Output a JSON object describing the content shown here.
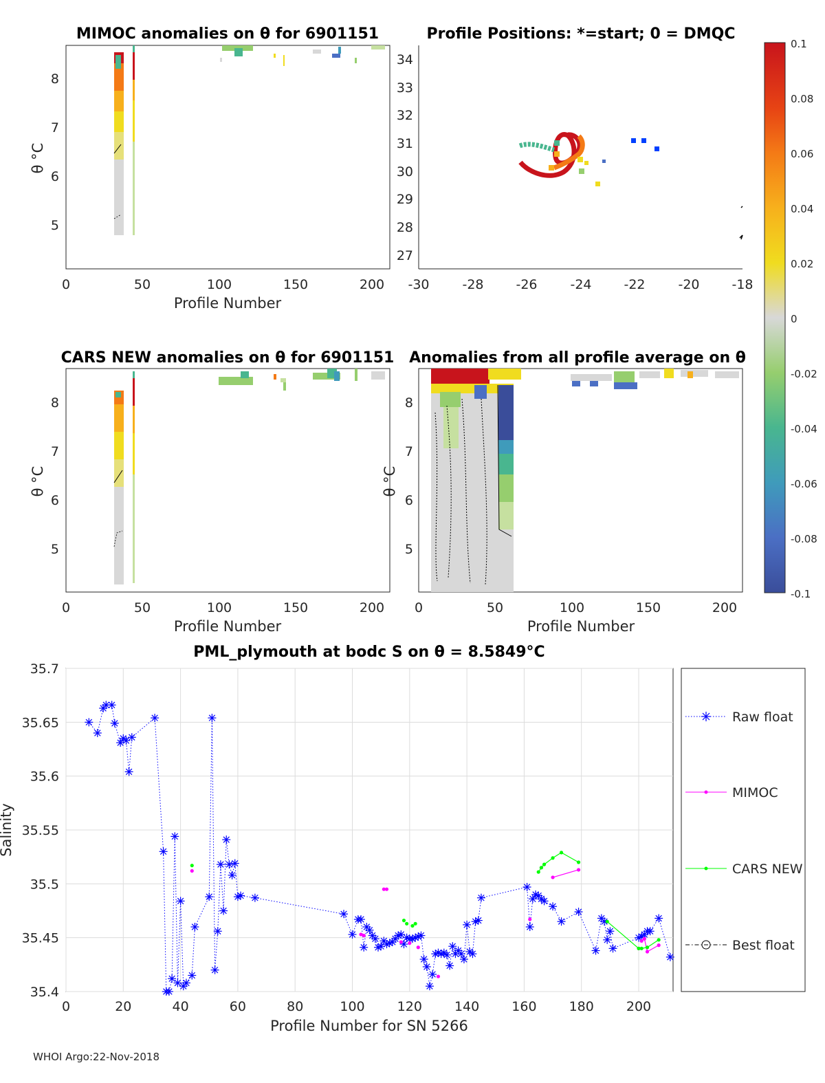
{
  "panels": {
    "mimoc": {
      "title": "MIMOC anomalies on θ  for 6901151",
      "xlabel": "Profile Number",
      "ylabel": "θ °C",
      "xticks": [
        "0",
        "50",
        "100",
        "150",
        "200"
      ],
      "yticks": [
        "5",
        "6",
        "7",
        "8"
      ]
    },
    "positions": {
      "title": "Profile Positions: *=start; 0 = DMQC",
      "xticks": [
        "-30",
        "-28",
        "-26",
        "-24",
        "-22",
        "-20",
        "-18"
      ],
      "yticks": [
        "27",
        "28",
        "29",
        "30",
        "31",
        "32",
        "33",
        "34"
      ]
    },
    "cars": {
      "title": "CARS NEW anomalies on θ for 6901151",
      "xlabel": "Profile Number",
      "ylabel": "θ °C",
      "xticks": [
        "0",
        "50",
        "100",
        "150",
        "200"
      ],
      "yticks": [
        "5",
        "6",
        "7",
        "8"
      ]
    },
    "anom": {
      "title": "Anomalies from all profile average on θ",
      "xlabel": "Profile Number",
      "ylabel": "θ °C",
      "xticks": [
        "0",
        "50",
        "100",
        "150",
        "200"
      ],
      "yticks": [
        "5",
        "6",
        "7",
        "8"
      ]
    }
  },
  "colorbar": {
    "ticks": [
      "0.1",
      "0.08",
      "0.06",
      "0.04",
      "0.02",
      "0",
      "-0.02",
      "-0.04",
      "-0.06",
      "-0.08",
      "-0.1"
    ],
    "range": [
      -0.1,
      0.1
    ],
    "colors": [
      "#3a4d9a",
      "#4b6fc4",
      "#3f9bbb",
      "#49b68f",
      "#96ce6e",
      "#d8d8d8",
      "#f0dc1f",
      "#f7b01c",
      "#f47a16",
      "#e74414",
      "#c8141c"
    ]
  },
  "chart_data": [
    {
      "type": "scatter",
      "title": "PML_plymouth at bodc S on θ = 8.5849°C",
      "xlabel": "Profile Number for SN 5266",
      "ylabel": "Salinity",
      "xlim": [
        0,
        212
      ],
      "ylim": [
        35.4,
        35.7
      ],
      "xticks": [
        "0",
        "20",
        "40",
        "60",
        "80",
        "100",
        "120",
        "140",
        "160",
        "180",
        "200"
      ],
      "yticks": [
        "35.4",
        "35.45",
        "35.5",
        "35.55",
        "35.6",
        "35.65",
        "35.7"
      ],
      "grid": true,
      "legend_position": "right",
      "series": [
        {
          "name": "Raw float",
          "color": "#0000ff",
          "marker": "asterisk",
          "line": "dotted",
          "x": [
            8,
            11,
            13,
            14,
            16,
            17,
            19,
            20,
            21,
            22,
            23,
            31,
            34,
            35,
            36,
            37,
            38,
            39,
            40,
            41,
            42,
            44,
            45,
            50,
            51,
            52,
            53,
            54,
            55,
            56,
            57,
            58,
            59,
            60,
            61,
            66,
            97,
            100,
            102,
            103,
            104,
            105,
            106,
            107,
            108,
            109,
            110,
            111,
            112,
            113,
            114,
            115,
            116,
            117,
            118,
            119,
            120,
            121,
            122,
            123,
            124,
            125,
            126,
            127,
            128,
            129,
            130,
            131,
            132,
            133,
            134,
            135,
            136,
            137,
            138,
            139,
            140,
            141,
            142,
            143,
            144,
            145,
            161,
            162,
            163,
            164,
            165,
            166,
            167,
            170,
            173,
            179,
            185,
            187,
            188,
            189,
            190,
            191,
            200,
            201,
            202,
            203,
            204,
            207,
            211
          ],
          "y": [
            35.65,
            35.64,
            35.663,
            35.666,
            35.666,
            35.649,
            35.631,
            35.635,
            35.633,
            35.604,
            35.636,
            35.654,
            35.53,
            35.4,
            35.4,
            35.412,
            35.544,
            35.408,
            35.484,
            35.405,
            35.408,
            35.415,
            35.46,
            35.488,
            35.654,
            35.42,
            35.456,
            35.518,
            35.475,
            35.541,
            35.518,
            35.508,
            35.519,
            35.488,
            35.489,
            35.487,
            35.472,
            35.453,
            35.467,
            35.467,
            35.441,
            35.46,
            35.457,
            35.452,
            35.449,
            35.441,
            35.442,
            35.447,
            35.444,
            35.445,
            35.446,
            35.449,
            35.452,
            35.453,
            35.444,
            35.45,
            35.449,
            35.449,
            35.45,
            35.451,
            35.452,
            35.43,
            35.423,
            35.405,
            35.416,
            35.435,
            35.436,
            35.435,
            35.436,
            35.434,
            35.424,
            35.442,
            35.435,
            35.438,
            35.435,
            35.43,
            35.462,
            35.437,
            35.435,
            35.465,
            35.466,
            35.487,
            35.497,
            35.46,
            35.486,
            35.49,
            35.489,
            35.486,
            35.484,
            35.479,
            35.465,
            35.474,
            35.438,
            35.468,
            35.465,
            35.448,
            35.456,
            35.44,
            35.45,
            35.451,
            35.453,
            35.456,
            35.456,
            35.468,
            35.432
          ]
        },
        {
          "name": "MIMOC",
          "color": "#ff00ff",
          "marker": "dot",
          "line": "solid",
          "x": [
            44,
            103,
            104,
            111,
            112,
            117,
            120,
            123,
            130,
            162,
            166,
            170,
            179,
            200,
            201,
            202,
            203,
            207
          ],
          "y": [
            35.512,
            35.453,
            35.452,
            35.495,
            35.495,
            35.446,
            35.445,
            35.441,
            35.414,
            35.467,
            35.515,
            35.506,
            35.513,
            35.44,
            35.447,
            35.449,
            35.437,
            35.443
          ],
          "lines": [
            [
              11,
              12
            ],
            [
              14,
              15
            ],
            [
              15,
              16
            ],
            [
              16,
              17
            ]
          ]
        },
        {
          "name": "CARS NEW",
          "color": "#00ff00",
          "marker": "dot",
          "line": "solid",
          "x": [
            44,
            118,
            119,
            121,
            122,
            165,
            166,
            167,
            170,
            173,
            179,
            189,
            200,
            201,
            203,
            207
          ],
          "y": [
            35.517,
            35.466,
            35.463,
            35.461,
            35.463,
            35.511,
            35.515,
            35.518,
            35.524,
            35.529,
            35.52,
            35.465,
            35.44,
            35.44,
            35.441,
            35.448
          ],
          "lines": [
            [
              5,
              6
            ],
            [
              6,
              7
            ],
            [
              7,
              8
            ],
            [
              8,
              9
            ],
            [
              9,
              10
            ],
            [
              11,
              12
            ],
            [
              12,
              13
            ],
            [
              13,
              14
            ],
            [
              14,
              15
            ]
          ]
        },
        {
          "name": "Best float",
          "color": "#000000",
          "marker": "circle",
          "line": "dashdot",
          "x": [],
          "y": []
        }
      ]
    }
  ],
  "footer": "WHOI Argo:22-Nov-2018"
}
